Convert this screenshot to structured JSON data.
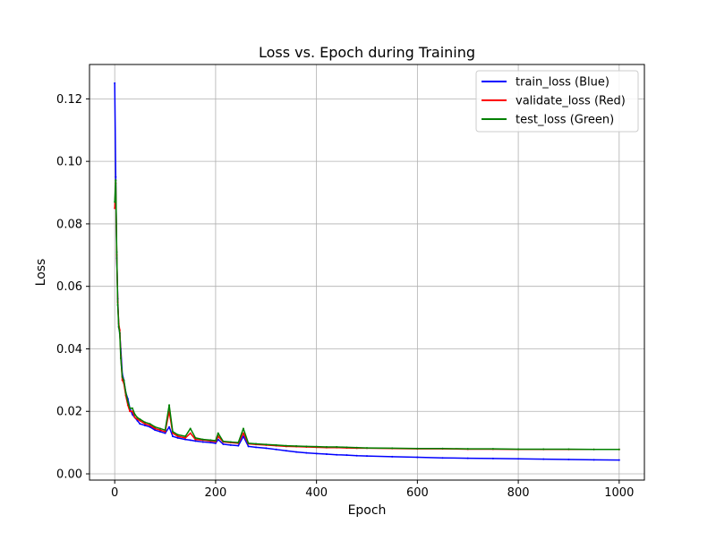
{
  "chart_data": {
    "type": "line",
    "title": "Loss vs. Epoch during Training",
    "xlabel": "Epoch",
    "ylabel": "Loss",
    "xlim": [
      -50,
      1050
    ],
    "ylim": [
      -0.002,
      0.131
    ],
    "x_ticks": [
      0,
      200,
      400,
      600,
      800,
      1000
    ],
    "x_tick_labels": [
      "0",
      "200",
      "400",
      "600",
      "800",
      "1000"
    ],
    "y_ticks": [
      0.0,
      0.02,
      0.04,
      0.06,
      0.08,
      0.1,
      0.12
    ],
    "y_tick_labels": [
      "0.00",
      "0.02",
      "0.04",
      "0.06",
      "0.08",
      "0.10",
      "0.12"
    ],
    "grid": true,
    "legend_position": "top-right",
    "series": [
      {
        "name": "train_loss (Blue)",
        "color": "#0000ff",
        "x": [
          0,
          2,
          4,
          6,
          8,
          10,
          12,
          15,
          18,
          22,
          26,
          30,
          35,
          40,
          45,
          50,
          60,
          70,
          80,
          90,
          100,
          108,
          115,
          125,
          140,
          150,
          160,
          175,
          190,
          200,
          205,
          215,
          230,
          245,
          255,
          265,
          280,
          300,
          320,
          340,
          360,
          380,
          400,
          420,
          440,
          460,
          480,
          500,
          550,
          600,
          650,
          700,
          750,
          800,
          850,
          900,
          950,
          1000
        ],
        "y": [
          0.125,
          0.095,
          0.069,
          0.056,
          0.047,
          0.045,
          0.04,
          0.032,
          0.03,
          0.026,
          0.024,
          0.021,
          0.019,
          0.018,
          0.017,
          0.016,
          0.0155,
          0.015,
          0.014,
          0.0135,
          0.013,
          0.015,
          0.012,
          0.0115,
          0.011,
          0.0108,
          0.0105,
          0.0102,
          0.01,
          0.0098,
          0.011,
          0.0095,
          0.0092,
          0.009,
          0.012,
          0.0088,
          0.0085,
          0.0082,
          0.0078,
          0.0074,
          0.007,
          0.0067,
          0.0065,
          0.0063,
          0.0061,
          0.006,
          0.0058,
          0.0057,
          0.0055,
          0.0053,
          0.0051,
          0.005,
          0.0049,
          0.0048,
          0.0047,
          0.0046,
          0.0045,
          0.0044
        ]
      },
      {
        "name": "validate_loss (Red)",
        "color": "#ff0000",
        "x": [
          0,
          2,
          4,
          6,
          8,
          10,
          12,
          15,
          18,
          22,
          26,
          30,
          35,
          40,
          45,
          50,
          60,
          70,
          80,
          90,
          100,
          108,
          115,
          125,
          140,
          150,
          160,
          175,
          190,
          200,
          205,
          215,
          230,
          245,
          255,
          265,
          280,
          300,
          320,
          340,
          360,
          380,
          400,
          420,
          440,
          460,
          480,
          500,
          550,
          600,
          650,
          700,
          750,
          800,
          850,
          900,
          950,
          1000
        ],
        "y": [
          0.085,
          0.093,
          0.07,
          0.055,
          0.048,
          0.046,
          0.038,
          0.03,
          0.029,
          0.025,
          0.022,
          0.02,
          0.02,
          0.018,
          0.0175,
          0.017,
          0.016,
          0.0155,
          0.0145,
          0.014,
          0.0135,
          0.02,
          0.013,
          0.012,
          0.0115,
          0.013,
          0.011,
          0.0108,
          0.0105,
          0.0103,
          0.012,
          0.0102,
          0.01,
          0.0098,
          0.013,
          0.0096,
          0.0094,
          0.0092,
          0.009,
          0.0088,
          0.0087,
          0.0086,
          0.0085,
          0.0084,
          0.0084,
          0.0083,
          0.0082,
          0.0082,
          0.0081,
          0.008,
          0.008,
          0.0079,
          0.0079,
          0.0078,
          0.0078,
          0.0078,
          0.0078,
          0.0078
        ]
      },
      {
        "name": "test_loss (Green)",
        "color": "#008000",
        "x": [
          0,
          2,
          4,
          6,
          8,
          10,
          12,
          15,
          18,
          22,
          26,
          30,
          35,
          40,
          45,
          50,
          60,
          70,
          80,
          90,
          100,
          108,
          115,
          125,
          140,
          150,
          160,
          175,
          190,
          200,
          205,
          215,
          230,
          245,
          255,
          265,
          280,
          300,
          320,
          340,
          360,
          380,
          400,
          420,
          440,
          460,
          480,
          500,
          550,
          600,
          650,
          700,
          750,
          800,
          850,
          900,
          950,
          1000
        ],
        "y": [
          0.087,
          0.094,
          0.071,
          0.054,
          0.047,
          0.045,
          0.037,
          0.031,
          0.03,
          0.026,
          0.023,
          0.021,
          0.021,
          0.019,
          0.018,
          0.0175,
          0.0165,
          0.016,
          0.015,
          0.0145,
          0.014,
          0.022,
          0.0135,
          0.0125,
          0.012,
          0.0145,
          0.0115,
          0.011,
          0.0108,
          0.0106,
          0.013,
          0.0104,
          0.0102,
          0.01,
          0.0145,
          0.0098,
          0.0096,
          0.0094,
          0.0092,
          0.009,
          0.0089,
          0.0088,
          0.0087,
          0.0086,
          0.0086,
          0.0085,
          0.0084,
          0.0083,
          0.0082,
          0.0081,
          0.0081,
          0.008,
          0.008,
          0.0079,
          0.0079,
          0.0079,
          0.0078,
          0.0078
        ]
      }
    ]
  }
}
